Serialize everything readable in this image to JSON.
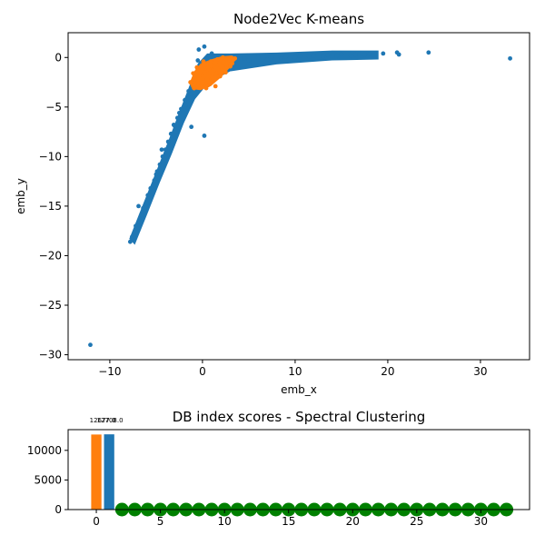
{
  "colors": {
    "blue": "#1f77b4",
    "orange": "#ff7f0e",
    "green": "#008000"
  },
  "chart_data": [
    {
      "type": "scatter",
      "title": "Node2Vec K-means",
      "xlabel": "emb_x",
      "ylabel": "emb_y",
      "xlim": [
        -14.5,
        35.3
      ],
      "ylim": [
        -30.5,
        2.5
      ],
      "xticks": [
        -10,
        0,
        10,
        20,
        30
      ],
      "yticks": [
        -30,
        -25,
        -20,
        -15,
        -10,
        -5,
        0
      ],
      "xtick_labels": [
        "−10",
        "0",
        "10",
        "20",
        "30"
      ],
      "ytick_labels": [
        "−30",
        "−25",
        "−20",
        "−15",
        "−10",
        "−5",
        "0"
      ],
      "series": [
        {
          "color": "blue",
          "points": [
            [
              -12.1,
              -29.0
            ],
            [
              -7.8,
              -18.6
            ],
            [
              -7.6,
              -18.1
            ],
            [
              -7.2,
              -17.0
            ],
            [
              -6.9,
              -16.6
            ],
            [
              -6.6,
              -15.9
            ],
            [
              -6.4,
              -15.2
            ],
            [
              -6.0,
              -14.7
            ],
            [
              -5.9,
              -13.9
            ],
            [
              -5.6,
              -13.2
            ],
            [
              -5.2,
              -12.4
            ],
            [
              -4.9,
              -11.5
            ],
            [
              -4.6,
              -10.8
            ],
            [
              -4.3,
              -10.0
            ],
            [
              -4.0,
              -9.3
            ],
            [
              -3.7,
              -8.5
            ],
            [
              -3.4,
              -7.7
            ],
            [
              -3.0,
              -6.9
            ],
            [
              -2.7,
              -6.1
            ],
            [
              -2.3,
              -5.2
            ],
            [
              -1.9,
              -4.3
            ],
            [
              -1.5,
              -3.4
            ],
            [
              -1.1,
              -2.6
            ],
            [
              -0.6,
              -1.8
            ],
            [
              0.0,
              -1.0
            ],
            [
              0.6,
              -0.6
            ],
            [
              1.2,
              -0.4
            ],
            [
              2.0,
              -0.3
            ],
            [
              3.0,
              -0.2
            ],
            [
              4.5,
              -0.1
            ],
            [
              6.0,
              0.0
            ],
            [
              7.5,
              0.05
            ],
            [
              9.0,
              0.1
            ],
            [
              10.5,
              0.15
            ],
            [
              12.0,
              0.2
            ],
            [
              13.5,
              0.25
            ],
            [
              15.0,
              0.3
            ],
            [
              16.5,
              0.3
            ],
            [
              18.0,
              0.35
            ],
            [
              19.5,
              0.4
            ],
            [
              21.0,
              0.5
            ],
            [
              21.2,
              0.3
            ],
            [
              24.4,
              0.5
            ],
            [
              33.2,
              -0.1
            ],
            [
              -0.4,
              0.8
            ],
            [
              0.2,
              1.1
            ],
            [
              -1.2,
              -7.0
            ],
            [
              0.2,
              -7.9
            ],
            [
              -6.9,
              -15.0
            ],
            [
              -5.0,
              -11.8
            ],
            [
              -4.4,
              -9.3
            ],
            [
              -3.1,
              -6.8
            ],
            [
              -2.5,
              -5.6
            ],
            [
              -1.8,
              -4.8
            ],
            [
              -1.3,
              -3.7
            ],
            [
              -0.8,
              -2.6
            ],
            [
              -0.3,
              -1.5
            ],
            [
              0.4,
              -1.3
            ],
            [
              1.5,
              -0.8
            ],
            [
              2.5,
              -0.6
            ],
            [
              3.5,
              -0.5
            ],
            [
              5.0,
              -0.3
            ],
            [
              7.0,
              -0.2
            ],
            [
              8.5,
              -0.1
            ],
            [
              10.0,
              0.0
            ],
            [
              11.5,
              0.1
            ],
            [
              13.0,
              0.1
            ],
            [
              14.5,
              0.2
            ],
            [
              16.0,
              0.2
            ],
            [
              17.5,
              0.3
            ],
            [
              0.8,
              -0.2
            ],
            [
              -0.5,
              -0.3
            ],
            [
              1.0,
              0.4
            ]
          ]
        },
        {
          "color": "orange",
          "points": [
            [
              -1.3,
              -2.5
            ],
            [
              -1.0,
              -2.8
            ],
            [
              -0.8,
              -2.2
            ],
            [
              -0.5,
              -2.9
            ],
            [
              -0.3,
              -1.8
            ],
            [
              0.0,
              -2.5
            ],
            [
              0.2,
              -1.5
            ],
            [
              0.5,
              -2.2
            ],
            [
              0.7,
              -1.2
            ],
            [
              1.0,
              -1.9
            ],
            [
              1.2,
              -0.9
            ],
            [
              1.5,
              -1.6
            ],
            [
              1.8,
              -0.7
            ],
            [
              2.0,
              -1.3
            ],
            [
              2.3,
              -0.5
            ],
            [
              2.6,
              -1.0
            ],
            [
              2.9,
              -0.3
            ],
            [
              3.2,
              -0.6
            ],
            [
              3.5,
              -0.1
            ],
            [
              -0.6,
              -1.0
            ],
            [
              0.3,
              -0.7
            ],
            [
              0.9,
              -0.4
            ],
            [
              1.6,
              -0.2
            ],
            [
              -0.2,
              -3.0
            ],
            [
              0.6,
              -2.8
            ],
            [
              1.1,
              -2.4
            ],
            [
              1.9,
              -1.9
            ],
            [
              2.5,
              -1.5
            ],
            [
              -1.0,
              -1.6
            ],
            [
              0.1,
              -0.4
            ],
            [
              2.2,
              0.0
            ],
            [
              3.0,
              -0.9
            ],
            [
              1.4,
              -2.9
            ],
            [
              0.4,
              -3.1
            ],
            [
              -0.9,
              -3.1
            ]
          ]
        }
      ],
      "blob_color": "blue"
    },
    {
      "type": "bar",
      "title": "DB index scores - Spectral Clustering",
      "xlim": [
        -2.2,
        33.8
      ],
      "ylim": [
        0,
        13500
      ],
      "xticks": [
        0,
        5,
        10,
        15,
        20,
        25,
        30
      ],
      "yticks": [
        0,
        5000,
        10000
      ],
      "xtick_labels": [
        "0",
        "5",
        "10",
        "15",
        "20",
        "25",
        "30"
      ],
      "ytick_labels": [
        "0",
        "5000",
        "10000"
      ],
      "bars": [
        {
          "x": 0,
          "value": 12677.0,
          "color": "orange"
        },
        {
          "x": 1,
          "value": 12708.0,
          "color": "blue"
        }
      ],
      "bar_labels": [
        "12677.0",
        "12708.0"
      ],
      "green_points_x": [
        2,
        3,
        4,
        5,
        6,
        7,
        8,
        9,
        10,
        11,
        12,
        13,
        14,
        15,
        16,
        17,
        18,
        19,
        20,
        21,
        22,
        23,
        24,
        25,
        26,
        27,
        28,
        29,
        30,
        31,
        32
      ],
      "green_points_value": 0
    }
  ]
}
